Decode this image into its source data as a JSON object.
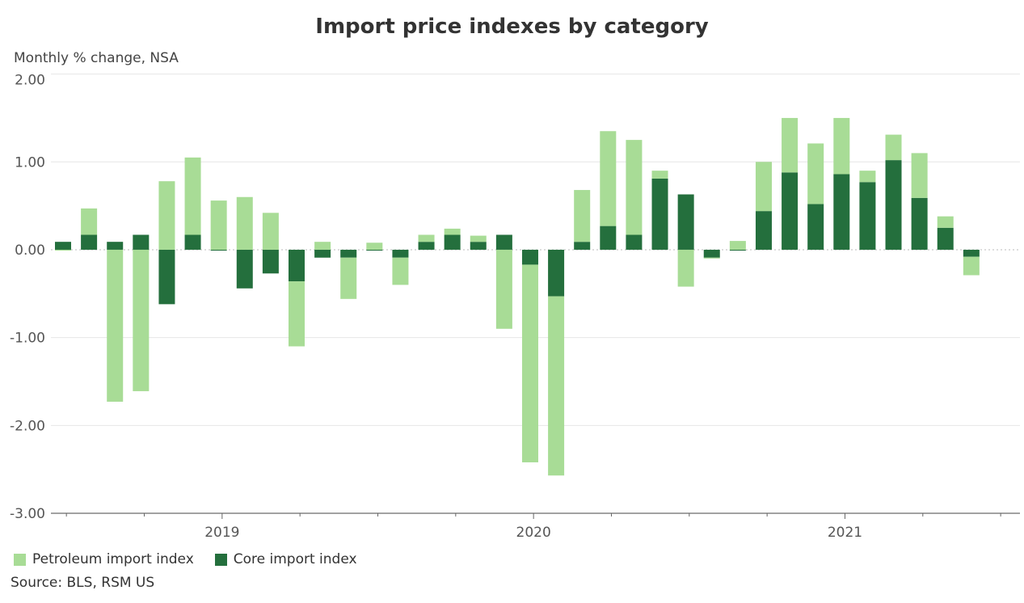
{
  "chart_data": {
    "type": "bar",
    "stacked": true,
    "title": "Import price indexes by category",
    "subtitle": "Monthly % change, NSA",
    "ylabel": "Monthly % change, NSA",
    "xlabel": "",
    "ylim": [
      -3,
      2
    ],
    "yticks": [
      "2.00",
      "1.00",
      "0.00",
      "-1.00",
      "-2.00",
      "-3.00"
    ],
    "ytick_values": [
      2,
      1,
      0,
      -1,
      -2,
      -3
    ],
    "xticks": [
      {
        "label": "2019",
        "date": "2019-01"
      },
      {
        "label": "2020",
        "date": "2020-01"
      },
      {
        "label": "2021",
        "date": "2021-01"
      }
    ],
    "grid": "horizontal",
    "legend_placement": "bottom-left",
    "x": [
      "2018-07",
      "2018-08",
      "2018-09",
      "2018-10",
      "2018-11",
      "2018-12",
      "2019-01",
      "2019-02",
      "2019-03",
      "2019-04",
      "2019-05",
      "2019-06",
      "2019-07",
      "2019-08",
      "2019-09",
      "2019-10",
      "2019-11",
      "2019-12",
      "2020-01",
      "2020-02",
      "2020-03",
      "2020-04",
      "2020-05",
      "2020-06",
      "2020-07",
      "2020-08",
      "2020-09",
      "2020-10",
      "2020-11",
      "2020-12",
      "2021-01",
      "2021-02",
      "2021-03",
      "2021-04",
      "2021-05",
      "2021-06"
    ],
    "series": [
      {
        "name": "Petroleum import index",
        "color": "#a8dc96",
        "values": [
          -0.01,
          0.3,
          -1.73,
          -1.61,
          0.78,
          0.88,
          0.56,
          0.6,
          0.42,
          -0.74,
          0.09,
          -0.47,
          0.08,
          -0.31,
          0.08,
          0.07,
          0.07,
          -0.9,
          -2.25,
          -2.04,
          0.59,
          1.08,
          1.08,
          0.09,
          -0.42,
          -0.01,
          0.1,
          0.56,
          0.62,
          0.69,
          0.64,
          0.13,
          0.29,
          0.51,
          0.13,
          -0.21
        ]
      },
      {
        "name": "Core import index",
        "color": "#246f3d",
        "values": [
          0.09,
          0.17,
          0.09,
          0.17,
          -0.62,
          0.17,
          -0.01,
          -0.44,
          -0.27,
          -0.36,
          -0.09,
          -0.09,
          -0.01,
          -0.09,
          0.09,
          0.17,
          0.09,
          0.17,
          -0.17,
          -0.53,
          0.09,
          0.27,
          0.17,
          0.81,
          0.63,
          -0.09,
          -0.01,
          0.44,
          0.88,
          0.52,
          0.86,
          0.77,
          1.02,
          0.59,
          0.25,
          -0.08
        ]
      }
    ]
  },
  "source": "Source: BLS, RSM US"
}
